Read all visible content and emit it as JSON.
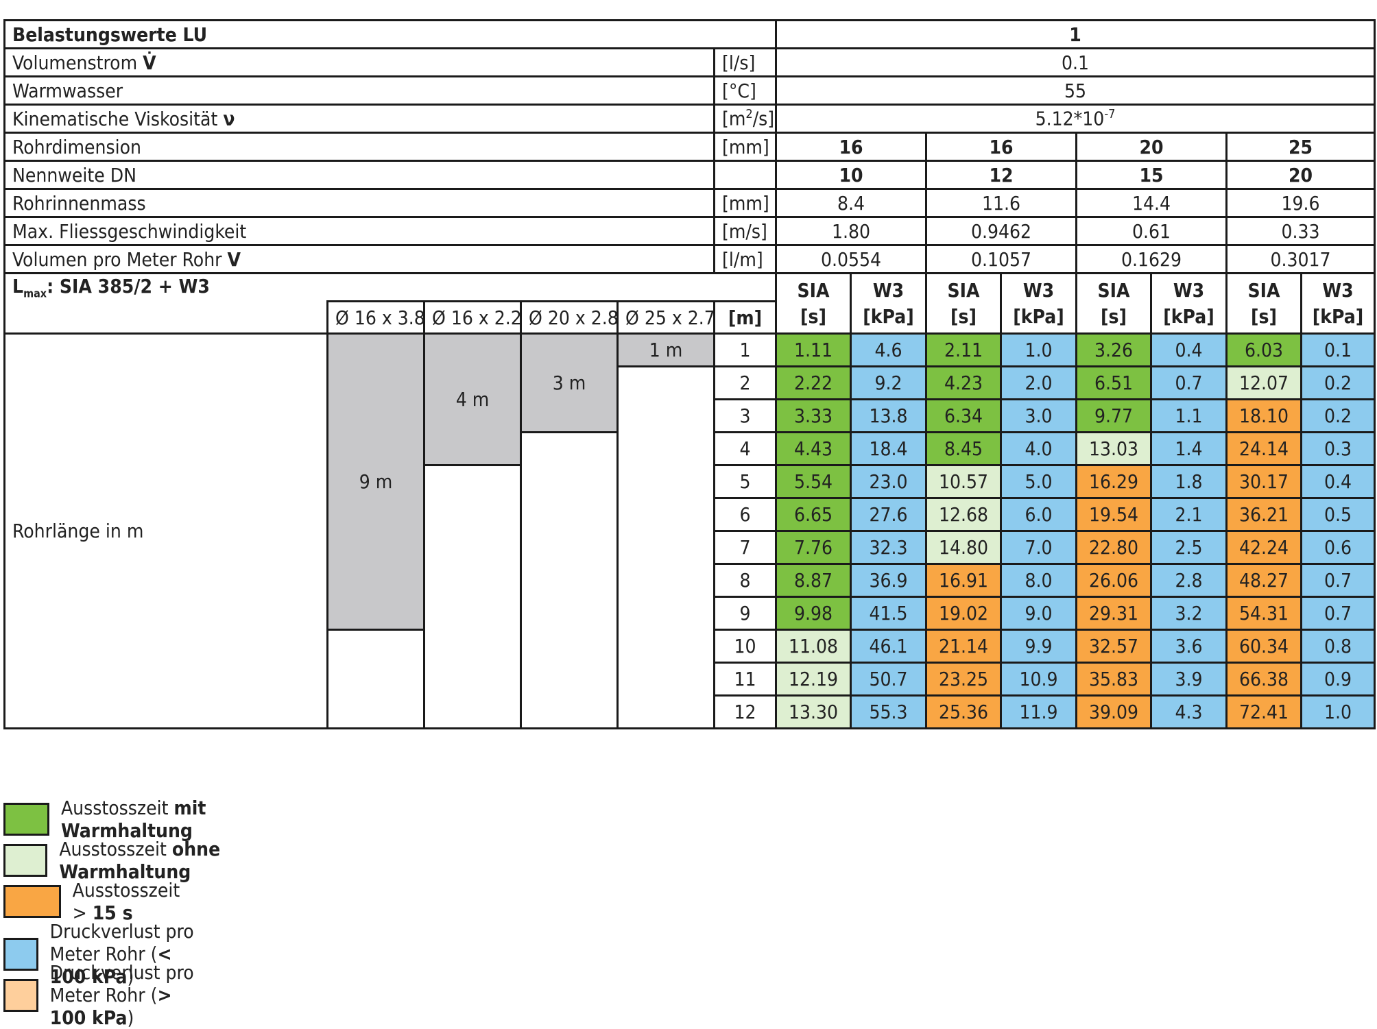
{
  "header": {
    "title": "Belastungswerte LU",
    "load_value": "1"
  },
  "params": [
    {
      "label": "Volumenstrom",
      "sym": "V̇",
      "unit": "[l/s]",
      "value": "0.1"
    },
    {
      "label": "Warmwasser",
      "sym": "",
      "unit": "[°C]",
      "value": "55"
    },
    {
      "label": "Kinematische Viskosität",
      "sym": "ν",
      "unit_base": "[m",
      "unit_sup": "2",
      "unit_tail": "/s]",
      "value_base": "5.12*10",
      "value_sup": "-7"
    }
  ],
  "pipe_rows": [
    {
      "label": "Rohrdimension",
      "unit": "[mm]",
      "values": [
        "16",
        "16",
        "20",
        "25"
      ]
    },
    {
      "label": "Nennweite DN",
      "unit": "",
      "values": [
        "10",
        "12",
        "15",
        "20"
      ]
    },
    {
      "label": "Rohrinnenmass",
      "unit": "[mm]",
      "values": [
        "8.4",
        "11.6",
        "14.4",
        "19.6"
      ]
    },
    {
      "label": "Max. Fliessgeschwindigkeit",
      "unit": "[m/s]",
      "values": [
        "1.80",
        "0.9462",
        "0.61",
        "0.33"
      ]
    },
    {
      "label": "Volumen pro Meter Rohr",
      "sym": "V",
      "unit": "[l/m]",
      "values": [
        "0.0554",
        "0.1057",
        "0.1629",
        "0.3017"
      ]
    }
  ],
  "lmax": {
    "l": "L",
    "sub": "max",
    "text": ": SIA 385/2 + W3",
    "pipes": [
      "Ø 16 x 3.8",
      "Ø 16 x 2.2",
      "Ø 20 x 2.8",
      "Ø 25 x 2.7"
    ],
    "meter_unit": "[m]",
    "sia_top": "SIA",
    "sia_bottom": "[s]",
    "w3_top": "W3",
    "w3_bottom": "[kPa]"
  },
  "bars": [
    {
      "label": "9 m",
      "length_m": 9
    },
    {
      "label": "4 m",
      "length_m": 4
    },
    {
      "label": "3 m",
      "length_m": 3
    },
    {
      "label": "1 m",
      "length_m": 1
    }
  ],
  "row_label": "Rohrlänge in m",
  "rows": [
    {
      "m": "1",
      "cells": [
        [
          "1.11",
          "g"
        ],
        [
          "4.6",
          "bl"
        ],
        [
          "2.11",
          "g"
        ],
        [
          "1.0",
          "bl"
        ],
        [
          "3.26",
          "g"
        ],
        [
          "0.4",
          "bl"
        ],
        [
          "6.03",
          "g"
        ],
        [
          "0.1",
          "bl"
        ]
      ]
    },
    {
      "m": "2",
      "cells": [
        [
          "2.22",
          "g"
        ],
        [
          "9.2",
          "bl"
        ],
        [
          "4.23",
          "g"
        ],
        [
          "2.0",
          "bl"
        ],
        [
          "6.51",
          "g"
        ],
        [
          "0.7",
          "bl"
        ],
        [
          "12.07",
          "lg"
        ],
        [
          "0.2",
          "bl"
        ]
      ]
    },
    {
      "m": "3",
      "cells": [
        [
          "3.33",
          "g"
        ],
        [
          "13.8",
          "bl"
        ],
        [
          "6.34",
          "g"
        ],
        [
          "3.0",
          "bl"
        ],
        [
          "9.77",
          "g"
        ],
        [
          "1.1",
          "bl"
        ],
        [
          "18.10",
          "o"
        ],
        [
          "0.2",
          "bl"
        ]
      ]
    },
    {
      "m": "4",
      "cells": [
        [
          "4.43",
          "g"
        ],
        [
          "18.4",
          "bl"
        ],
        [
          "8.45",
          "g"
        ],
        [
          "4.0",
          "bl"
        ],
        [
          "13.03",
          "lg"
        ],
        [
          "1.4",
          "bl"
        ],
        [
          "24.14",
          "o"
        ],
        [
          "0.3",
          "bl"
        ]
      ]
    },
    {
      "m": "5",
      "cells": [
        [
          "5.54",
          "g"
        ],
        [
          "23.0",
          "bl"
        ],
        [
          "10.57",
          "lg"
        ],
        [
          "5.0",
          "bl"
        ],
        [
          "16.29",
          "o"
        ],
        [
          "1.8",
          "bl"
        ],
        [
          "30.17",
          "o"
        ],
        [
          "0.4",
          "bl"
        ]
      ]
    },
    {
      "m": "6",
      "cells": [
        [
          "6.65",
          "g"
        ],
        [
          "27.6",
          "bl"
        ],
        [
          "12.68",
          "lg"
        ],
        [
          "6.0",
          "bl"
        ],
        [
          "19.54",
          "o"
        ],
        [
          "2.1",
          "bl"
        ],
        [
          "36.21",
          "o"
        ],
        [
          "0.5",
          "bl"
        ]
      ]
    },
    {
      "m": "7",
      "cells": [
        [
          "7.76",
          "g"
        ],
        [
          "32.3",
          "bl"
        ],
        [
          "14.80",
          "lg"
        ],
        [
          "7.0",
          "bl"
        ],
        [
          "22.80",
          "o"
        ],
        [
          "2.5",
          "bl"
        ],
        [
          "42.24",
          "o"
        ],
        [
          "0.6",
          "bl"
        ]
      ]
    },
    {
      "m": "8",
      "cells": [
        [
          "8.87",
          "g"
        ],
        [
          "36.9",
          "bl"
        ],
        [
          "16.91",
          "o"
        ],
        [
          "8.0",
          "bl"
        ],
        [
          "26.06",
          "o"
        ],
        [
          "2.8",
          "bl"
        ],
        [
          "48.27",
          "o"
        ],
        [
          "0.7",
          "bl"
        ]
      ]
    },
    {
      "m": "9",
      "cells": [
        [
          "9.98",
          "g"
        ],
        [
          "41.5",
          "bl"
        ],
        [
          "19.02",
          "o"
        ],
        [
          "9.0",
          "bl"
        ],
        [
          "29.31",
          "o"
        ],
        [
          "3.2",
          "bl"
        ],
        [
          "54.31",
          "o"
        ],
        [
          "0.7",
          "bl"
        ]
      ]
    },
    {
      "m": "10",
      "cells": [
        [
          "11.08",
          "lg"
        ],
        [
          "46.1",
          "bl"
        ],
        [
          "21.14",
          "o"
        ],
        [
          "9.9",
          "bl"
        ],
        [
          "32.57",
          "o"
        ],
        [
          "3.6",
          "bl"
        ],
        [
          "60.34",
          "o"
        ],
        [
          "0.8",
          "bl"
        ]
      ]
    },
    {
      "m": "11",
      "cells": [
        [
          "12.19",
          "lg"
        ],
        [
          "50.7",
          "bl"
        ],
        [
          "23.25",
          "o"
        ],
        [
          "10.9",
          "bl"
        ],
        [
          "35.83",
          "o"
        ],
        [
          "3.9",
          "bl"
        ],
        [
          "66.38",
          "o"
        ],
        [
          "0.9",
          "bl"
        ]
      ]
    },
    {
      "m": "12",
      "cells": [
        [
          "13.30",
          "lg"
        ],
        [
          "55.3",
          "bl"
        ],
        [
          "25.36",
          "o"
        ],
        [
          "11.9",
          "bl"
        ],
        [
          "39.09",
          "o"
        ],
        [
          "4.3",
          "bl"
        ],
        [
          "72.41",
          "o"
        ],
        [
          "1.0",
          "bl"
        ]
      ]
    }
  ],
  "colors": {
    "green": "#7dc142",
    "light_green": "#deefd1",
    "orange": "#f9a644",
    "blue": "#8dcbee",
    "peach": "#fecf9c",
    "gray_bar": "#c8c8ca"
  },
  "legend": [
    {
      "color": "#7dc142",
      "normal": "Ausstosszeit ",
      "bold": "mit Warmhaltung",
      "tail": ""
    },
    {
      "color": "#deefd1",
      "normal": "Ausstosszeit ",
      "bold": "ohne Warmhaltung",
      "tail": ""
    },
    {
      "color": "#f9a644",
      "normal": "Ausstosszeit > ",
      "bold": "15 s",
      "tail": ""
    },
    {
      "color": "#8dcbee",
      "normal": "Druckverlust pro Meter Rohr (",
      "bold": "< 100 kPa",
      "tail": ")"
    },
    {
      "color": "#fecf9c",
      "normal": "Druckverlust pro Meter Rohr (",
      "bold": "> 100 kPa",
      "tail": ")"
    }
  ]
}
